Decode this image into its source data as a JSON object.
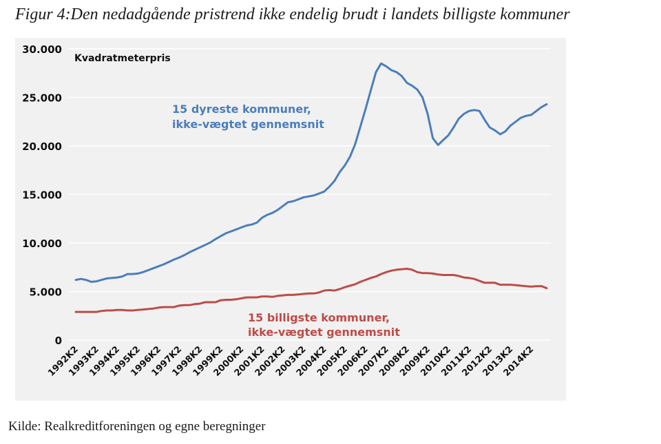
{
  "figure": {
    "title": "Figur 4:Den nedadgående pristrend ikke endelig brudt i landets billigste kommuner",
    "source": "Kilde: Realkreditforeningen og egne beregninger"
  },
  "chart_data": {
    "type": "line",
    "title": "Figur 4:Den nedadgående pristrend ikke endelig brudt i landets billigste kommuner",
    "ylabel": "Kvadratmeterpris",
    "xlabel": "",
    "ylim": [
      0,
      30000
    ],
    "yticks": [
      0,
      5000,
      10000,
      15000,
      20000,
      25000,
      30000
    ],
    "ytick_labels": [
      "0",
      "5.000",
      "10.000",
      "15.000",
      "20.000",
      "25.000",
      "30.000"
    ],
    "xtick_labels": [
      "1992K2",
      "1993K2",
      "1994K2",
      "1995K2",
      "1996K2",
      "1997K2",
      "1998K2",
      "1999K2",
      "2000K2",
      "2001K2",
      "2002K2",
      "2003K2",
      "2004K2",
      "2005K2",
      "2006K2",
      "2007K2",
      "2008K2",
      "2009K2",
      "2010K2",
      "2011K2",
      "2012K2",
      "2013K2",
      "2014K2"
    ],
    "x_start": "1992K2",
    "x_frequency": "quarterly",
    "grid": true,
    "legend": "none (inline annotations)",
    "series": [
      {
        "name": "15 dyreste kommuner, ikke-vægtet gennemsnit",
        "annotation_lines": [
          "15 dyreste kommuner,",
          "ikke-vægtet gennemsnit"
        ],
        "color": "#4a7ebb",
        "values": [
          6200,
          6300,
          6200,
          6000,
          6050,
          6200,
          6350,
          6400,
          6450,
          6550,
          6800,
          6800,
          6850,
          7000,
          7200,
          7400,
          7600,
          7800,
          8050,
          8300,
          8500,
          8750,
          9050,
          9300,
          9550,
          9800,
          10050,
          10400,
          10700,
          11000,
          11200,
          11400,
          11600,
          11800,
          11900,
          12100,
          12600,
          12900,
          13100,
          13400,
          13800,
          14200,
          14300,
          14500,
          14700,
          14800,
          14900,
          15100,
          15300,
          15800,
          16400,
          17300,
          18000,
          18900,
          20200,
          22000,
          23800,
          25700,
          27600,
          28500,
          28200,
          27800,
          27600,
          27200,
          26500,
          26200,
          25800,
          25000,
          23300,
          20800,
          20100,
          20600,
          21100,
          21900,
          22800,
          23300,
          23600,
          23700,
          23600,
          22700,
          21900,
          21600,
          21200,
          21500,
          22100,
          22500,
          22900,
          23100,
          23200,
          23600,
          24000,
          24300
        ]
      },
      {
        "name": "15 billigste kommuner, ikke-vægtet gennemsnit",
        "annotation_lines": [
          "15 billigste kommuner,",
          "ikke-vægtet gennemsnit"
        ],
        "color": "#be4b48",
        "values": [
          2900,
          2900,
          2900,
          2900,
          2900,
          3000,
          3050,
          3050,
          3100,
          3100,
          3050,
          3050,
          3100,
          3150,
          3200,
          3250,
          3350,
          3400,
          3400,
          3400,
          3550,
          3600,
          3600,
          3700,
          3750,
          3900,
          3900,
          3900,
          4100,
          4150,
          4150,
          4200,
          4300,
          4400,
          4400,
          4400,
          4500,
          4500,
          4450,
          4550,
          4600,
          4650,
          4650,
          4700,
          4750,
          4800,
          4800,
          4900,
          5100,
          5150,
          5100,
          5250,
          5450,
          5600,
          5750,
          6000,
          6200,
          6400,
          6550,
          6800,
          7000,
          7150,
          7250,
          7300,
          7350,
          7250,
          7000,
          6900,
          6900,
          6850,
          6750,
          6700,
          6700,
          6700,
          6600,
          6450,
          6400,
          6300,
          6100,
          5900,
          5900,
          5900,
          5700,
          5700,
          5700,
          5650,
          5600,
          5550,
          5500,
          5550,
          5550,
          5350
        ]
      }
    ]
  }
}
